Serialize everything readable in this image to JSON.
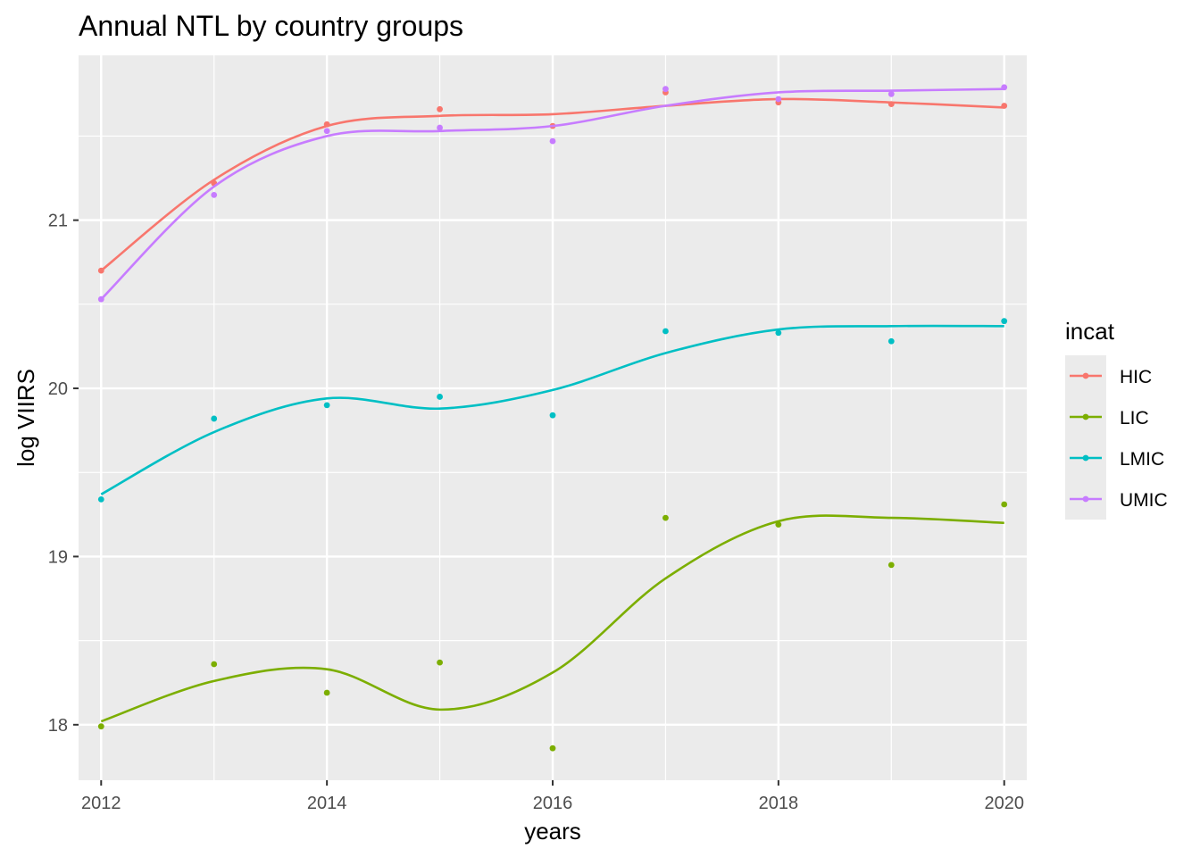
{
  "chart_data": {
    "type": "line",
    "title": "Annual NTL by country groups",
    "xlabel": "years",
    "ylabel": "log VIIRS",
    "x": [
      2012,
      2013,
      2014,
      2015,
      2016,
      2017,
      2018,
      2019,
      2020
    ],
    "xlim": [
      2011.8,
      2020.2
    ],
    "ylim": [
      17.67,
      21.98
    ],
    "x_ticks": [
      2012,
      2014,
      2016,
      2018,
      2020
    ],
    "y_ticks": [
      18,
      19,
      20,
      21
    ],
    "grid": true,
    "legend": {
      "title": "incat",
      "position": "right"
    },
    "series": [
      {
        "name": "HIC",
        "color": "#F8766D",
        "points": [
          20.7,
          21.22,
          21.57,
          21.66,
          21.56,
          21.76,
          21.7,
          21.69,
          21.68
        ],
        "smooth": [
          20.7,
          21.24,
          21.56,
          21.62,
          21.63,
          21.68,
          21.72,
          21.7,
          21.67
        ]
      },
      {
        "name": "LIC",
        "color": "#7CAE00",
        "points": [
          17.99,
          18.36,
          18.19,
          18.37,
          17.86,
          19.23,
          19.19,
          18.95,
          19.31
        ],
        "smooth": [
          18.02,
          18.26,
          18.33,
          18.09,
          18.31,
          18.87,
          19.21,
          19.23,
          19.2
        ]
      },
      {
        "name": "LMIC",
        "color": "#00BFC4",
        "points": [
          19.34,
          19.82,
          19.9,
          19.95,
          19.84,
          20.34,
          20.33,
          20.28,
          20.4
        ],
        "smooth": [
          19.37,
          19.74,
          19.94,
          19.88,
          19.99,
          20.21,
          20.35,
          20.37,
          20.37
        ]
      },
      {
        "name": "UMIC",
        "color": "#C77CFF",
        "points": [
          20.53,
          21.15,
          21.53,
          21.55,
          21.47,
          21.78,
          21.72,
          21.75,
          21.79
        ],
        "smooth": [
          20.53,
          21.2,
          21.5,
          21.53,
          21.56,
          21.68,
          21.76,
          21.77,
          21.78
        ]
      }
    ]
  }
}
